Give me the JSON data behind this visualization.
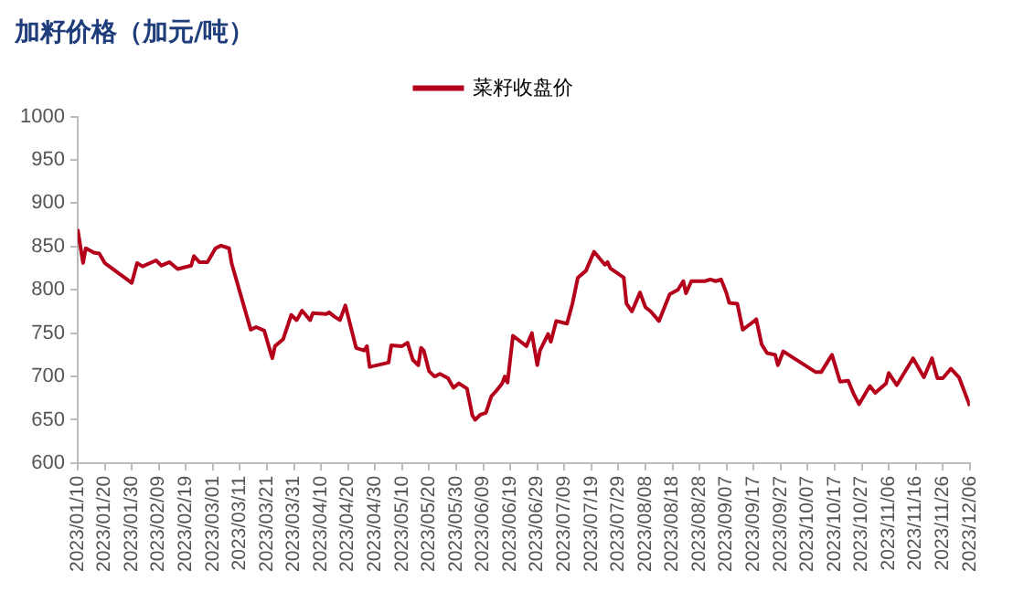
{
  "chart_data": {
    "type": "line",
    "title": "加籽价格（加元/吨）",
    "legend": "top",
    "grid": false,
    "marker": "none",
    "line_style": "solid",
    "x": [
      "2023-01-10",
      "2023-01-12",
      "2023-01-13",
      "2023-01-16",
      "2023-01-18",
      "2023-01-20",
      "2023-01-30",
      "2023-02-01",
      "2023-02-03",
      "2023-02-08",
      "2023-02-10",
      "2023-02-13",
      "2023-02-16",
      "2023-02-21",
      "2023-02-22",
      "2023-02-24",
      "2023-02-27",
      "2023-03-02",
      "2023-03-04",
      "2023-03-07",
      "2023-03-08",
      "2023-03-15",
      "2023-03-17",
      "2023-03-20",
      "2023-03-23",
      "2023-03-24",
      "2023-03-27",
      "2023-03-30",
      "2023-04-01",
      "2023-04-03",
      "2023-04-06",
      "2023-04-07",
      "2023-04-12",
      "2023-04-13",
      "2023-04-15",
      "2023-04-17",
      "2023-04-19",
      "2023-04-23",
      "2023-04-26",
      "2023-04-27",
      "2023-04-28",
      "2023-05-05",
      "2023-05-06",
      "2023-05-10",
      "2023-05-12",
      "2023-05-14",
      "2023-05-16",
      "2023-05-17",
      "2023-05-18",
      "2023-05-20",
      "2023-05-22",
      "2023-05-24",
      "2023-05-27",
      "2023-05-29",
      "2023-05-31",
      "2023-06-03",
      "2023-06-05",
      "2023-06-06",
      "2023-06-08",
      "2023-06-10",
      "2023-06-12",
      "2023-06-14",
      "2023-06-16",
      "2023-06-17",
      "2023-06-18",
      "2023-06-20",
      "2023-06-25",
      "2023-06-27",
      "2023-06-29",
      "2023-06-30",
      "2023-07-03",
      "2023-07-04",
      "2023-07-06",
      "2023-07-10",
      "2023-07-12",
      "2023-07-14",
      "2023-07-17",
      "2023-07-20",
      "2023-07-24",
      "2023-07-25",
      "2023-07-26",
      "2023-07-31",
      "2023-08-01",
      "2023-08-03",
      "2023-08-06",
      "2023-08-08",
      "2023-08-10",
      "2023-08-13",
      "2023-08-17",
      "2023-08-20",
      "2023-08-22",
      "2023-08-23",
      "2023-08-25",
      "2023-08-30",
      "2023-09-01",
      "2023-09-03",
      "2023-09-05",
      "2023-09-07",
      "2023-09-08",
      "2023-09-11",
      "2023-09-13",
      "2023-09-16",
      "2023-09-18",
      "2023-09-20",
      "2023-09-22",
      "2023-09-25",
      "2023-09-26",
      "2023-09-28",
      "2023-10-10",
      "2023-10-12",
      "2023-10-16",
      "2023-10-19",
      "2023-10-22",
      "2023-10-24",
      "2023-10-26",
      "2023-10-30",
      "2023-11-01",
      "2023-11-05",
      "2023-11-06",
      "2023-11-09",
      "2023-11-15",
      "2023-11-19",
      "2023-11-22",
      "2023-11-24",
      "2023-11-26",
      "2023-11-29",
      "2023-12-02",
      "2023-12-06"
    ],
    "series": [
      {
        "name": "菜籽收盘价",
        "color": "#b5001b",
        "values": [
          870,
          831,
          848,
          843,
          842,
          831,
          808,
          831,
          827,
          834,
          828,
          832,
          824,
          828,
          839,
          832,
          832,
          848,
          851,
          848,
          830,
          754,
          757,
          753,
          721,
          735,
          743,
          771,
          765,
          776,
          765,
          773,
          772,
          774,
          769,
          765,
          782,
          733,
          730,
          735,
          711,
          716,
          736,
          735,
          739,
          719,
          713,
          733,
          730,
          706,
          700,
          703,
          698,
          687,
          692,
          686,
          655,
          650,
          656,
          658,
          677,
          684,
          692,
          700,
          693,
          747,
          735,
          750,
          713,
          730,
          749,
          740,
          764,
          761,
          784,
          814,
          822,
          844,
          829,
          832,
          825,
          814,
          784,
          775,
          797,
          780,
          775,
          764,
          795,
          800,
          810,
          796,
          810,
          810,
          812,
          810,
          812,
          796,
          785,
          784,
          754,
          761,
          766,
          737,
          727,
          725,
          713,
          729,
          705,
          705,
          725,
          694,
          695,
          680,
          668,
          689,
          681,
          692,
          704,
          690,
          721,
          699,
          721,
          698,
          698,
          709,
          699,
          666
        ]
      }
    ],
    "ylim": [
      600,
      1000
    ],
    "yticks": [
      600,
      650,
      700,
      750,
      800,
      850,
      900,
      950,
      1000
    ],
    "xlim": [
      "2023-01-10",
      "2023-12-06"
    ],
    "xticks": [
      {
        "value": "2023-01-10",
        "label": "2023/01/10"
      },
      {
        "value": "2023-01-20",
        "label": "2023/01/20"
      },
      {
        "value": "2023-01-30",
        "label": "2023/01/30"
      },
      {
        "value": "2023-02-09",
        "label": "2023/02/09"
      },
      {
        "value": "2023-02-19",
        "label": "2023/02/19"
      },
      {
        "value": "2023-03-01",
        "label": "2023/03/01"
      },
      {
        "value": "2023-03-11",
        "label": "2023/03/11"
      },
      {
        "value": "2023-03-21",
        "label": "2023/03/21"
      },
      {
        "value": "2023-03-31",
        "label": "2023/03/31"
      },
      {
        "value": "2023-04-10",
        "label": "2023/04/10"
      },
      {
        "value": "2023-04-20",
        "label": "2023/04/20"
      },
      {
        "value": "2023-04-30",
        "label": "2023/04/30"
      },
      {
        "value": "2023-05-10",
        "label": "2023/05/10"
      },
      {
        "value": "2023-05-20",
        "label": "2023/05/20"
      },
      {
        "value": "2023-05-30",
        "label": "2023/05/30"
      },
      {
        "value": "2023-06-09",
        "label": "2023/06/09"
      },
      {
        "value": "2023-06-19",
        "label": "2023/06/19"
      },
      {
        "value": "2023-06-29",
        "label": "2023/06/29"
      },
      {
        "value": "2023-07-09",
        "label": "2023/07/09"
      },
      {
        "value": "2023-07-19",
        "label": "2023/07/19"
      },
      {
        "value": "2023-07-29",
        "label": "2023/07/29"
      },
      {
        "value": "2023-08-08",
        "label": "2023/08/08"
      },
      {
        "value": "2023-08-18",
        "label": "2023/08/18"
      },
      {
        "value": "2023-08-28",
        "label": "2023/08/28"
      },
      {
        "value": "2023-09-07",
        "label": "2023/09/07"
      },
      {
        "value": "2023-09-17",
        "label": "2023/09/17"
      },
      {
        "value": "2023-09-27",
        "label": "2023/09/27"
      },
      {
        "value": "2023-10-07",
        "label": "2023/10/07"
      },
      {
        "value": "2023-10-17",
        "label": "2023/10/17"
      },
      {
        "value": "2023-10-27",
        "label": "2023/10/27"
      },
      {
        "value": "2023-11-06",
        "label": "2023/11/06"
      },
      {
        "value": "2023-11-16",
        "label": "2023/11/16"
      },
      {
        "value": "2023-11-26",
        "label": "2023/11/26"
      },
      {
        "value": "2023-12-06",
        "label": "2023/12/06"
      }
    ]
  }
}
